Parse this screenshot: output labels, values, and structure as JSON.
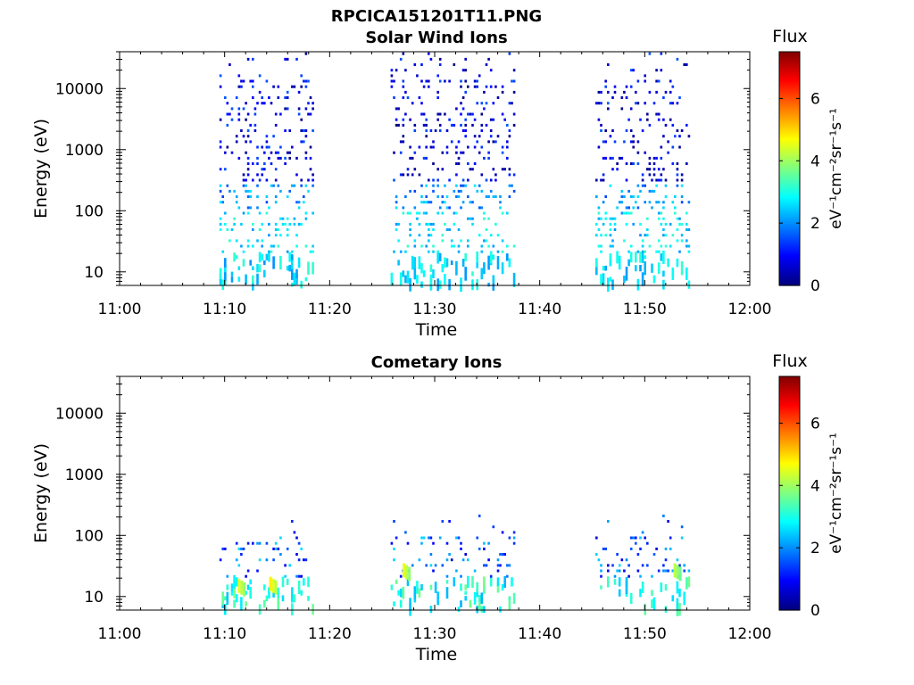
{
  "figure": {
    "title": "RPCICA151201T11.PNG"
  },
  "colorbar": {
    "title": "Flux",
    "unit_label": "eV⁻¹cm⁻²sr⁻¹s⁻¹",
    "ticks": [
      "0",
      "2",
      "4",
      "6"
    ],
    "range": [
      0,
      7.5
    ],
    "colormap": "jet"
  },
  "chart_data": [
    {
      "type": "heatmap",
      "title": "Solar Wind Ions",
      "xlabel": "Time",
      "ylabel": "Energy (eV)",
      "x_ticks": [
        "11:00",
        "11:10",
        "11:20",
        "11:30",
        "11:40",
        "11:50",
        "12:00"
      ],
      "y_ticks": [
        "10",
        "100",
        "1000",
        "10000"
      ],
      "x_range": [
        "11:00",
        "12:00"
      ],
      "y_range": [
        6,
        40000
      ],
      "y_scale": "log",
      "value_range": [
        0,
        7.5
      ],
      "data_blocks": [
        {
          "start": "11:09.5",
          "end": "11:18.5"
        },
        {
          "start": "11:25.8",
          "end": "11:37.5"
        },
        {
          "start": "11:45.3",
          "end": "11:54.2"
        }
      ],
      "seed": 11
    },
    {
      "type": "heatmap",
      "title": "Cometary Ions",
      "xlabel": "Time",
      "ylabel": "Energy (eV)",
      "x_ticks": [
        "11:00",
        "11:10",
        "11:20",
        "11:30",
        "11:40",
        "11:50",
        "12:00"
      ],
      "y_ticks": [
        "10",
        "100",
        "1000",
        "10000"
      ],
      "x_range": [
        "11:00",
        "12:00"
      ],
      "y_range": [
        6,
        40000
      ],
      "y_scale": "log",
      "value_range": [
        0,
        7.5
      ],
      "data_blocks": [
        {
          "start": "11:09.5",
          "end": "11:18.5"
        },
        {
          "start": "11:25.8",
          "end": "11:37.5"
        },
        {
          "start": "11:45.3",
          "end": "11:54.2"
        }
      ],
      "hotspots": [
        {
          "time": "11:11.5",
          "energy": 14,
          "flux": 4.5
        },
        {
          "time": "11:14.5",
          "energy": 15,
          "flux": 4.8
        },
        {
          "time": "11:27.2",
          "energy": 25,
          "flux": 4.5
        },
        {
          "time": "11:53.0",
          "energy": 25,
          "flux": 4.2
        }
      ],
      "seed": 23
    }
  ]
}
